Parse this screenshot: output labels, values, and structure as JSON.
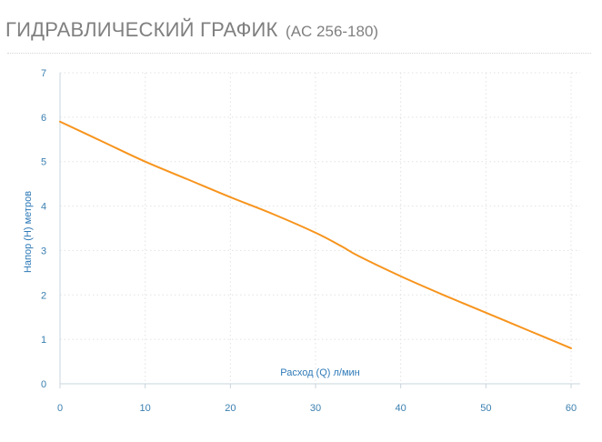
{
  "header": {
    "title": "ГИДРАВЛИЧЕСКИЙ ГРАФИК",
    "subtitle": "(AC 256-180)"
  },
  "colors": {
    "line": "#f7941d",
    "grid": "#e2e2e2",
    "axis": "#3a7fb0",
    "title": "#808080"
  },
  "chart_data": {
    "type": "line",
    "title": "ГИДРАВЛИЧЕСКИЙ ГРАФИК (AC 256-180)",
    "xlabel": "Расход (Q) л/мин",
    "ylabel": "Напор (H) метров",
    "xlim": [
      0,
      60
    ],
    "ylim": [
      0,
      7
    ],
    "xticks": [
      "0",
      "10",
      "20",
      "30",
      "40",
      "50",
      "60"
    ],
    "yticks": [
      "0",
      "1",
      "2",
      "3",
      "4",
      "5",
      "6",
      "7"
    ],
    "grid": true,
    "series": [
      {
        "x": [
          0,
          5,
          10,
          15,
          20,
          25,
          30,
          33,
          35,
          40,
          45,
          50,
          55,
          60
        ],
        "y": [
          5.9,
          5.45,
          5.0,
          4.6,
          4.2,
          3.82,
          3.4,
          3.1,
          2.88,
          2.42,
          2.0,
          1.6,
          1.2,
          0.8
        ]
      }
    ]
  }
}
